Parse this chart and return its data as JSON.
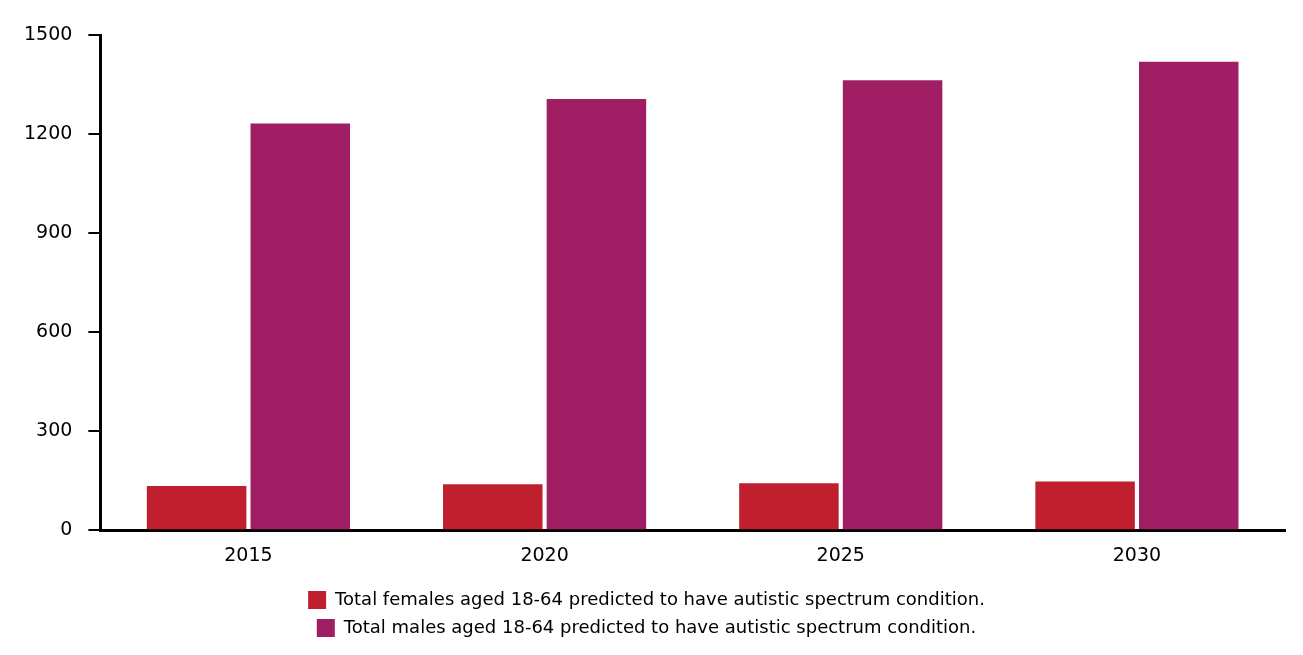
{
  "chart_data": {
    "type": "bar",
    "categories": [
      "2015",
      "2020",
      "2025",
      "2030"
    ],
    "series": [
      {
        "name": "Total females aged 18-64 predicted to have autistic spectrum condition.",
        "color": "#c0202e",
        "values": [
          134,
          139,
          142,
          148
        ]
      },
      {
        "name": "Total males aged 18-64 predicted to have autistic spectrum condition.",
        "color": "#a01f64",
        "values": [
          1233,
          1307,
          1364,
          1420
        ]
      }
    ],
    "ylim": [
      0,
      1500
    ],
    "yticks": [
      0,
      300,
      600,
      900,
      1200,
      1500
    ],
    "grid": false,
    "legend": "bottom"
  }
}
